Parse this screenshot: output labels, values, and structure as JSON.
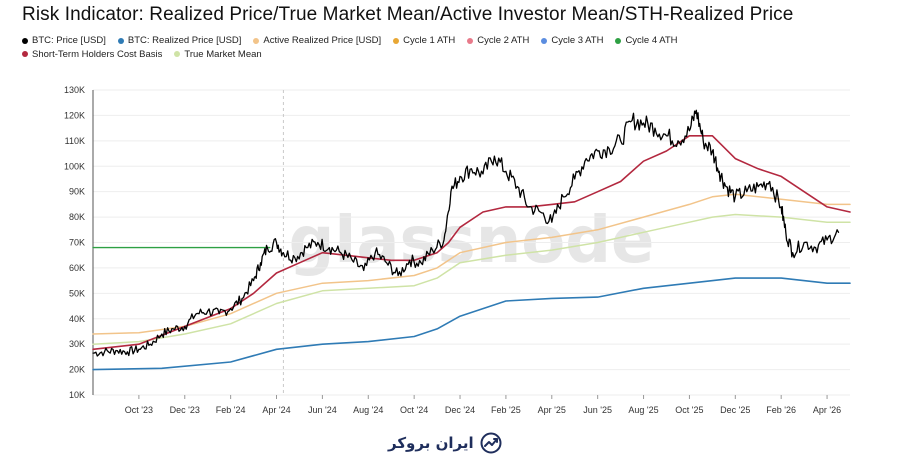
{
  "chart_data": {
    "type": "line",
    "title": "Risk Indicator: Realized Price/True Market Mean/Active Investor Mean/STH-Realized Price",
    "watermark": "glassnode",
    "ylim": [
      10,
      130
    ],
    "yticks": [
      "10K",
      "20K",
      "30K",
      "40K",
      "50K",
      "60K",
      "70K",
      "80K",
      "90K",
      "100K",
      "110K",
      "120K",
      "130K"
    ],
    "x_months": [
      {
        "label": "Oct '23",
        "t": 2
      },
      {
        "label": "Dec '23",
        "t": 4
      },
      {
        "label": "Feb '24",
        "t": 6
      },
      {
        "label": "Apr '24",
        "t": 8
      },
      {
        "label": "Jun '24",
        "t": 10
      },
      {
        "label": "Aug '24",
        "t": 12
      },
      {
        "label": "Oct '24",
        "t": 14
      },
      {
        "label": "Dec '24",
        "t": 16
      },
      {
        "label": "Feb '25",
        "t": 18
      },
      {
        "label": "Apr '25",
        "t": 20
      },
      {
        "label": "Jun '25",
        "t": 22
      },
      {
        "label": "Aug '25",
        "t": 24
      },
      {
        "label": "Oct '25",
        "t": 26
      },
      {
        "label": "Dec '25",
        "t": 28
      },
      {
        "label": "Feb '26",
        "t": 30
      },
      {
        "label": "Apr '26",
        "t": 32
      }
    ],
    "x_range": [
      0,
      33
    ],
    "vline_t": 8.3,
    "legend": [
      {
        "name": "BTC: Price [USD]",
        "color": "#000000"
      },
      {
        "name": "BTC: Realized Price [USD]",
        "color": "#2f7bb5"
      },
      {
        "name": "Active Realized Price [USD]",
        "color": "#f2c48a"
      },
      {
        "name": "Cycle 1 ATH",
        "color": "#e8a735"
      },
      {
        "name": "Cycle 2 ATH",
        "color": "#e87a8a"
      },
      {
        "name": "Cycle 3 ATH",
        "color": "#5b8de0"
      },
      {
        "name": "Cycle 4 ATH",
        "color": "#2ea043"
      },
      {
        "name": "Short-Term Holders Cost Basis",
        "color": "#b3283f"
      },
      {
        "name": "True Market Mean",
        "color": "#cfe3a6"
      }
    ],
    "series": [
      {
        "name": "BTC: Price [USD]",
        "color": "#000000",
        "width": 1.3,
        "noise": 1.2,
        "points": [
          [
            0,
            26.5
          ],
          [
            0.5,
            27
          ],
          [
            1,
            27.5
          ],
          [
            1.5,
            27
          ],
          [
            2,
            28
          ],
          [
            2.5,
            30
          ],
          [
            3,
            34
          ],
          [
            3.5,
            36
          ],
          [
            4,
            37
          ],
          [
            4.5,
            42
          ],
          [
            5,
            43
          ],
          [
            5.5,
            42
          ],
          [
            6,
            44
          ],
          [
            6.5,
            48
          ],
          [
            7,
            55
          ],
          [
            7.3,
            62
          ],
          [
            7.6,
            68
          ],
          [
            8,
            70
          ],
          [
            8.3,
            66
          ],
          [
            8.8,
            64
          ],
          [
            9.3,
            68
          ],
          [
            9.8,
            70
          ],
          [
            10.3,
            68
          ],
          [
            10.8,
            66
          ],
          [
            11.3,
            63
          ],
          [
            11.8,
            59
          ],
          [
            12.3,
            66
          ],
          [
            12.8,
            62
          ],
          [
            13.3,
            57
          ],
          [
            13.8,
            63
          ],
          [
            14.3,
            62
          ],
          [
            14.8,
            67
          ],
          [
            15.3,
            71
          ],
          [
            15.6,
            90
          ],
          [
            16,
            96
          ],
          [
            16.5,
            99
          ],
          [
            17,
            97
          ],
          [
            17.5,
            104
          ],
          [
            18,
            98
          ],
          [
            18.5,
            92
          ],
          [
            19,
            84
          ],
          [
            19.5,
            82
          ],
          [
            20,
            78
          ],
          [
            20.5,
            88
          ],
          [
            21,
            95
          ],
          [
            21.5,
            103
          ],
          [
            22,
            106
          ],
          [
            22.5,
            107
          ],
          [
            23,
            110
          ],
          [
            23.5,
            118
          ],
          [
            24,
            117
          ],
          [
            24.5,
            115
          ],
          [
            25,
            112
          ],
          [
            25.5,
            110
          ],
          [
            26,
            114
          ],
          [
            26.3,
            122
          ],
          [
            26.6,
            110
          ],
          [
            27,
            106
          ],
          [
            27.3,
            98
          ],
          [
            27.6,
            92
          ],
          [
            28,
            88
          ],
          [
            28.5,
            90
          ],
          [
            29,
            92
          ],
          [
            29.5,
            94
          ],
          [
            30,
            84
          ],
          [
            30.2,
            74
          ],
          [
            30.5,
            66
          ],
          [
            31,
            70
          ],
          [
            31.5,
            68
          ],
          [
            32,
            71
          ],
          [
            32.5,
            74
          ]
        ]
      },
      {
        "name": "BTC: Realized Price [USD]",
        "color": "#2f7bb5",
        "width": 1.6,
        "noise": 0,
        "points": [
          [
            0,
            20
          ],
          [
            3,
            20.5
          ],
          [
            6,
            23
          ],
          [
            8,
            28
          ],
          [
            10,
            30
          ],
          [
            12,
            31
          ],
          [
            14,
            33
          ],
          [
            15,
            36
          ],
          [
            16,
            41
          ],
          [
            18,
            47
          ],
          [
            20,
            48
          ],
          [
            22,
            48.5
          ],
          [
            24,
            52
          ],
          [
            26,
            54
          ],
          [
            28,
            56
          ],
          [
            30,
            56
          ],
          [
            32,
            54
          ],
          [
            33,
            54
          ]
        ]
      },
      {
        "name": "Active Realized Price [USD]",
        "color": "#f2c48a",
        "width": 1.5,
        "noise": 0,
        "points": [
          [
            0,
            34
          ],
          [
            2,
            34.5
          ],
          [
            4,
            37
          ],
          [
            6,
            42
          ],
          [
            8,
            50
          ],
          [
            10,
            54
          ],
          [
            12,
            55
          ],
          [
            14,
            57
          ],
          [
            15,
            60
          ],
          [
            16,
            66
          ],
          [
            18,
            70
          ],
          [
            20,
            72
          ],
          [
            22,
            75
          ],
          [
            24,
            80
          ],
          [
            26,
            85
          ],
          [
            27,
            88
          ],
          [
            28,
            89
          ],
          [
            30,
            87
          ],
          [
            32,
            85
          ],
          [
            33,
            85
          ]
        ]
      },
      {
        "name": "Cycle 4 ATH",
        "color": "#2ea043",
        "width": 1.4,
        "noise": 0,
        "points": [
          [
            0,
            68
          ],
          [
            7.7,
            68
          ]
        ]
      },
      {
        "name": "Short-Term Holders Cost Basis",
        "color": "#b3283f",
        "width": 1.6,
        "noise": 0,
        "points": [
          [
            0,
            28
          ],
          [
            2,
            30
          ],
          [
            4,
            37
          ],
          [
            6,
            44
          ],
          [
            7,
            50
          ],
          [
            8,
            58
          ],
          [
            9,
            62
          ],
          [
            10,
            66
          ],
          [
            11,
            65
          ],
          [
            12,
            64
          ],
          [
            13,
            63
          ],
          [
            14,
            63
          ],
          [
            15,
            66
          ],
          [
            15.5,
            70
          ],
          [
            16,
            76
          ],
          [
            17,
            82
          ],
          [
            18,
            84
          ],
          [
            19,
            84
          ],
          [
            20,
            85
          ],
          [
            21,
            86
          ],
          [
            22,
            90
          ],
          [
            23,
            94
          ],
          [
            24,
            102
          ],
          [
            25,
            106
          ],
          [
            26,
            112
          ],
          [
            27,
            112
          ],
          [
            28,
            103
          ],
          [
            29,
            99
          ],
          [
            30,
            96
          ],
          [
            31,
            90
          ],
          [
            32,
            84
          ],
          [
            33,
            82
          ]
        ]
      },
      {
        "name": "True Market Mean",
        "color": "#cfe3a6",
        "width": 1.5,
        "noise": 0,
        "points": [
          [
            0,
            30
          ],
          [
            2,
            31
          ],
          [
            4,
            34
          ],
          [
            6,
            38
          ],
          [
            8,
            46
          ],
          [
            10,
            51
          ],
          [
            12,
            52
          ],
          [
            14,
            53
          ],
          [
            15,
            56
          ],
          [
            16,
            62
          ],
          [
            18,
            65
          ],
          [
            20,
            67
          ],
          [
            22,
            70
          ],
          [
            24,
            74
          ],
          [
            26,
            78
          ],
          [
            27,
            80
          ],
          [
            28,
            81
          ],
          [
            30,
            80
          ],
          [
            32,
            78
          ],
          [
            33,
            78
          ]
        ]
      }
    ]
  },
  "brand": {
    "name": "ایران بروکر"
  }
}
